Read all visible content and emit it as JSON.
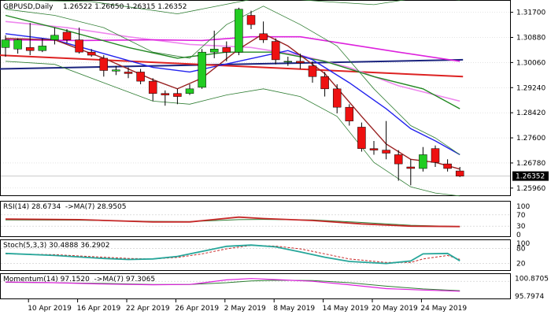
{
  "header": {
    "symbol_timeframe": "GBPUSD,Daily",
    "ohlc": "1.26522 1.26650 1.26315 1.26352"
  },
  "price_axis": {
    "labels": [
      "1.31700",
      "1.30880",
      "1.30060",
      "1.29240",
      "1.28420",
      "1.27600",
      "1.26780",
      "1.25960"
    ],
    "current_price": "1.26352"
  },
  "date_axis": {
    "labels": [
      "10 Apr 2019",
      "16 Apr 2019",
      "22 Apr 2019",
      "26 Apr 2019",
      "2 May 2019",
      "8 May 2019",
      "14 May 2019",
      "20 May 2019",
      "24 May 2019"
    ]
  },
  "indicators": {
    "rsi": {
      "caption": "RSI(14) 28.6734  ->MA(7) 28.9505",
      "axis_labels": [
        "100",
        "70",
        "30",
        "0"
      ]
    },
    "stoch": {
      "caption": "Stoch(5,3,3) 30.4888 36.2902",
      "axis_labels": [
        "100",
        "80",
        "20"
      ]
    },
    "momentum": {
      "caption": "Momentum(14) 97.1520  ->MA(7) 97.3065",
      "axis_labels": [
        "100.8705",
        "95.7974"
      ]
    }
  },
  "colors": {
    "bull": "#22cc22",
    "bear": "#ee1111",
    "ma_magenta": "#dd22dd",
    "ma_pink": "#ee88ee",
    "ma_navy": "#1a237e",
    "ma_red": "#dd2222",
    "ma_blue": "#2222ee",
    "ma_darkgreen": "#228822",
    "ma_maroon": "#992222",
    "band": "#2e7d32",
    "grid": "#c8c8c8"
  },
  "chart_data": {
    "type": "candlestick",
    "title": "GBPUSD,Daily",
    "ylim": [
      1.2575,
      1.3205
    ],
    "candles": [
      {
        "date": "2019-04-08",
        "o": 1.3055,
        "h": 1.3095,
        "l": 1.3025,
        "c": 1.308
      },
      {
        "date": "2019-04-09",
        "o": 1.305,
        "h": 1.3085,
        "l": 1.3035,
        "c": 1.308
      },
      {
        "date": "2019-04-10",
        "o": 1.3055,
        "h": 1.3135,
        "l": 1.303,
        "c": 1.3045
      },
      {
        "date": "2019-04-11",
        "o": 1.3045,
        "h": 1.3085,
        "l": 1.304,
        "c": 1.306
      },
      {
        "date": "2019-04-12",
        "o": 1.308,
        "h": 1.312,
        "l": 1.3065,
        "c": 1.3095
      },
      {
        "date": "2019-04-15",
        "o": 1.3105,
        "h": 1.3115,
        "l": 1.307,
        "c": 1.308
      },
      {
        "date": "2019-04-16",
        "o": 1.308,
        "h": 1.312,
        "l": 1.3035,
        "c": 1.304
      },
      {
        "date": "2019-04-17",
        "o": 1.304,
        "h": 1.305,
        "l": 1.3025,
        "c": 1.303
      },
      {
        "date": "2019-04-18",
        "o": 1.302,
        "h": 1.303,
        "l": 1.296,
        "c": 1.298
      },
      {
        "date": "2019-04-19",
        "o": 1.2978,
        "h": 1.2995,
        "l": 1.2965,
        "c": 1.2982
      },
      {
        "date": "2019-04-22",
        "o": 1.2975,
        "h": 1.299,
        "l": 1.2955,
        "c": 1.297
      },
      {
        "date": "2019-04-23",
        "o": 1.2975,
        "h": 1.2985,
        "l": 1.2935,
        "c": 1.2945
      },
      {
        "date": "2019-04-24",
        "o": 1.2945,
        "h": 1.2955,
        "l": 1.288,
        "c": 1.2905
      },
      {
        "date": "2019-04-25",
        "o": 1.2905,
        "h": 1.2915,
        "l": 1.2865,
        "c": 1.29
      },
      {
        "date": "2019-04-26",
        "o": 1.2905,
        "h": 1.292,
        "l": 1.287,
        "c": 1.2895
      },
      {
        "date": "2019-04-29",
        "o": 1.2905,
        "h": 1.2935,
        "l": 1.29,
        "c": 1.292
      },
      {
        "date": "2019-04-30",
        "o": 1.2925,
        "h": 1.305,
        "l": 1.292,
        "c": 1.304
      },
      {
        "date": "2019-05-01",
        "o": 1.304,
        "h": 1.311,
        "l": 1.302,
        "c": 1.305
      },
      {
        "date": "2019-05-02",
        "o": 1.3055,
        "h": 1.3075,
        "l": 1.301,
        "c": 1.304
      },
      {
        "date": "2019-05-03",
        "o": 1.304,
        "h": 1.3185,
        "l": 1.303,
        "c": 1.318
      },
      {
        "date": "2019-05-06",
        "o": 1.316,
        "h": 1.3175,
        "l": 1.3115,
        "c": 1.313
      },
      {
        "date": "2019-05-07",
        "o": 1.31,
        "h": 1.314,
        "l": 1.307,
        "c": 1.308
      },
      {
        "date": "2019-05-08",
        "o": 1.3075,
        "h": 1.3085,
        "l": 1.3,
        "c": 1.3015
      },
      {
        "date": "2019-05-09",
        "o": 1.301,
        "h": 1.3025,
        "l": 1.2995,
        "c": 1.301
      },
      {
        "date": "2019-05-10",
        "o": 1.301,
        "h": 1.3035,
        "l": 1.2985,
        "c": 1.3005
      },
      {
        "date": "2019-05-13",
        "o": 1.2995,
        "h": 1.301,
        "l": 1.294,
        "c": 1.296
      },
      {
        "date": "2019-05-14",
        "o": 1.296,
        "h": 1.2975,
        "l": 1.2895,
        "c": 1.292
      },
      {
        "date": "2019-05-15",
        "o": 1.292,
        "h": 1.2935,
        "l": 1.284,
        "c": 1.286
      },
      {
        "date": "2019-05-16",
        "o": 1.286,
        "h": 1.287,
        "l": 1.28,
        "c": 1.2815
      },
      {
        "date": "2019-05-17",
        "o": 1.2795,
        "h": 1.281,
        "l": 1.2715,
        "c": 1.2725
      },
      {
        "date": "2019-05-20",
        "o": 1.2725,
        "h": 1.275,
        "l": 1.2705,
        "c": 1.272
      },
      {
        "date": "2019-05-21",
        "o": 1.272,
        "h": 1.2815,
        "l": 1.269,
        "c": 1.271
      },
      {
        "date": "2019-05-22",
        "o": 1.2705,
        "h": 1.272,
        "l": 1.262,
        "c": 1.2675
      },
      {
        "date": "2019-05-23",
        "o": 1.2665,
        "h": 1.269,
        "l": 1.2605,
        "c": 1.266
      },
      {
        "date": "2019-05-24",
        "o": 1.266,
        "h": 1.273,
        "l": 1.265,
        "c": 1.2705
      },
      {
        "date": "2019-05-27",
        "o": 1.2725,
        "h": 1.2735,
        "l": 1.2665,
        "c": 1.268
      },
      {
        "date": "2019-05-28",
        "o": 1.2675,
        "h": 1.269,
        "l": 1.265,
        "c": 1.266
      },
      {
        "date": "2019-05-29",
        "o": 1.2652,
        "h": 1.2665,
        "l": 1.2632,
        "c": 1.2635
      }
    ],
    "horizontal_lines": [
      {
        "color": "ma_navy",
        "start_date": "2019-04-08",
        "y_start": 1.2985,
        "y_end": 1.3015
      },
      {
        "color": "ma_red",
        "start_date": "2019-04-08",
        "y_start": 1.303,
        "y_end": 1.296
      }
    ],
    "overlay_lines": [
      {
        "color": "ma_pink",
        "width": 1.6,
        "points": [
          [
            0,
            1.314
          ],
          [
            5,
            1.312
          ],
          [
            10,
            1.309
          ],
          [
            15,
            1.3065
          ],
          [
            20,
            1.3055
          ],
          [
            24,
            1.303
          ],
          [
            28,
            1.299
          ],
          [
            32,
            1.293
          ],
          [
            37,
            1.288
          ]
        ]
      },
      {
        "color": "ma_magenta",
        "width": 1.6,
        "points": [
          [
            0,
            1.308
          ],
          [
            6,
            1.3078
          ],
          [
            12,
            1.308
          ],
          [
            16,
            1.3078
          ],
          [
            20,
            1.309
          ],
          [
            24,
            1.309
          ],
          [
            28,
            1.3065
          ],
          [
            32,
            1.304
          ],
          [
            37,
            1.301
          ]
        ]
      },
      {
        "color": "ma_darkgreen",
        "width": 1.4,
        "points": [
          [
            0,
            1.316
          ],
          [
            5,
            1.311
          ],
          [
            10,
            1.3055
          ],
          [
            14,
            1.302
          ],
          [
            18,
            1.304
          ],
          [
            22,
            1.304
          ],
          [
            26,
            1.301
          ],
          [
            30,
            1.296
          ],
          [
            34,
            1.292
          ],
          [
            37,
            1.2855
          ]
        ]
      },
      {
        "color": "ma_blue",
        "width": 1.4,
        "points": [
          [
            0,
            1.31
          ],
          [
            4,
            1.308
          ],
          [
            8,
            1.3035
          ],
          [
            12,
            1.299
          ],
          [
            15,
            1.2975
          ],
          [
            19,
            1.301
          ],
          [
            23,
            1.3045
          ],
          [
            25,
            1.3015
          ],
          [
            28,
            1.294
          ],
          [
            31,
            1.2855
          ],
          [
            33,
            1.279
          ],
          [
            35,
            1.275
          ],
          [
            37,
            1.2705
          ]
        ]
      },
      {
        "color": "ma_maroon",
        "width": 1.4,
        "points": [
          [
            0,
            1.3085
          ],
          [
            4,
            1.308
          ],
          [
            8,
            1.302
          ],
          [
            12,
            1.295
          ],
          [
            14,
            1.292
          ],
          [
            16,
            1.2955
          ],
          [
            19,
            1.305
          ],
          [
            21,
            1.31
          ],
          [
            23,
            1.306
          ],
          [
            26,
            1.297
          ],
          [
            29,
            1.283
          ],
          [
            31,
            1.274
          ],
          [
            33,
            1.269
          ],
          [
            35,
            1.268
          ],
          [
            37,
            1.2658
          ]
        ]
      },
      {
        "color": "band",
        "width": 0.8,
        "points": [
          [
            0,
            1.318
          ],
          [
            4,
            1.316
          ],
          [
            8,
            1.312
          ],
          [
            12,
            1.304
          ],
          [
            15,
            1.302
          ],
          [
            18,
            1.313
          ],
          [
            21,
            1.319
          ],
          [
            24,
            1.313
          ],
          [
            27,
            1.306
          ],
          [
            30,
            1.292
          ],
          [
            33,
            1.28
          ],
          [
            35,
            1.276
          ],
          [
            37,
            1.2705
          ]
        ]
      },
      {
        "color": "band",
        "width": 0.8,
        "points": [
          [
            0,
            1.301
          ],
          [
            4,
            1.3
          ],
          [
            8,
            1.294
          ],
          [
            12,
            1.288
          ],
          [
            15,
            1.287
          ],
          [
            18,
            1.29
          ],
          [
            21,
            1.292
          ],
          [
            24,
            1.2895
          ],
          [
            27,
            1.283
          ],
          [
            30,
            1.268
          ],
          [
            33,
            1.26
          ],
          [
            35,
            1.258
          ],
          [
            37,
            1.257
          ]
        ]
      },
      {
        "color": "band",
        "width": 0.8,
        "points": [
          [
            0,
            1.321
          ],
          [
            7,
            1.3205
          ],
          [
            14,
            1.3165
          ],
          [
            21,
            1.322
          ],
          [
            26,
            1.3205
          ],
          [
            30,
            1.3195
          ],
          [
            34,
            1.322
          ],
          [
            37,
            1.321
          ]
        ]
      }
    ],
    "rsi": {
      "ylim": [
        0,
        100
      ],
      "rsi": [
        [
          0,
          55
        ],
        [
          6,
          53
        ],
        [
          12,
          45
        ],
        [
          15,
          45
        ],
        [
          19,
          62
        ],
        [
          21,
          57
        ],
        [
          25,
          50
        ],
        [
          29,
          38
        ],
        [
          33,
          30
        ],
        [
          37,
          28.67
        ]
      ],
      "ma": [
        [
          0,
          52
        ],
        [
          6,
          51
        ],
        [
          12,
          47
        ],
        [
          15,
          46
        ],
        [
          19,
          53
        ],
        [
          21,
          54
        ],
        [
          25,
          52
        ],
        [
          29,
          43
        ],
        [
          33,
          33
        ],
        [
          37,
          28.95
        ]
      ]
    },
    "stoch": {
      "ylim": [
        0,
        100
      ],
      "k": [
        [
          0,
          60
        ],
        [
          4,
          52
        ],
        [
          8,
          40
        ],
        [
          10,
          36
        ],
        [
          12,
          38
        ],
        [
          14,
          48
        ],
        [
          16,
          68
        ],
        [
          18,
          88
        ],
        [
          20,
          93
        ],
        [
          22,
          86
        ],
        [
          24,
          66
        ],
        [
          26,
          45
        ],
        [
          28,
          28
        ],
        [
          31,
          20
        ],
        [
          33,
          30
        ],
        [
          34,
          58
        ],
        [
          36,
          60
        ],
        [
          37,
          30.49
        ]
      ],
      "d": [
        [
          0,
          58
        ],
        [
          4,
          55
        ],
        [
          8,
          45
        ],
        [
          10,
          40
        ],
        [
          12,
          38
        ],
        [
          14,
          44
        ],
        [
          16,
          58
        ],
        [
          18,
          78
        ],
        [
          20,
          92
        ],
        [
          22,
          89
        ],
        [
          24,
          78
        ],
        [
          26,
          58
        ],
        [
          28,
          38
        ],
        [
          31,
          24
        ],
        [
          33,
          24
        ],
        [
          34,
          38
        ],
        [
          36,
          52
        ],
        [
          37,
          36.29
        ]
      ]
    },
    "momentum": {
      "ylim": [
        95.3,
        101.4
      ],
      "mom": [
        [
          0,
          99.8
        ],
        [
          4,
          99.6
        ],
        [
          8,
          99.2
        ],
        [
          12,
          99.0
        ],
        [
          15,
          99.1
        ],
        [
          18,
          100.4
        ],
        [
          20,
          100.8
        ],
        [
          22,
          100.5
        ],
        [
          25,
          100.0
        ],
        [
          28,
          99.0
        ],
        [
          31,
          97.9
        ],
        [
          34,
          97.5
        ],
        [
          37,
          97.15
        ]
      ],
      "ma": [
        [
          0,
          99.7
        ],
        [
          4,
          99.6
        ],
        [
          8,
          99.4
        ],
        [
          12,
          99.1
        ],
        [
          15,
          99.1
        ],
        [
          18,
          99.6
        ],
        [
          20,
          100.1
        ],
        [
          22,
          100.3
        ],
        [
          25,
          100.2
        ],
        [
          28,
          99.6
        ],
        [
          31,
          98.6
        ],
        [
          34,
          97.8
        ],
        [
          37,
          97.31
        ]
      ]
    }
  }
}
